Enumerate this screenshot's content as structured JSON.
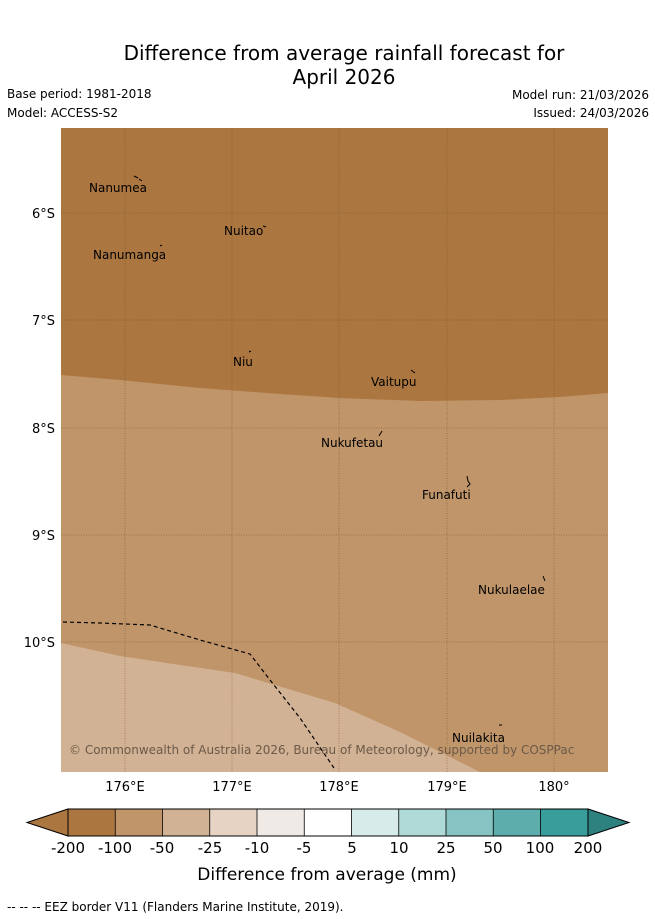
{
  "title": {
    "line1": "Difference from average rainfall forecast for",
    "line2": "April 2026"
  },
  "meta": {
    "base_period": "Base period: 1981-2018",
    "model": "Model: ACCESS-S2",
    "model_run": "Model run: 21/03/2026",
    "issued": "Issued: 24/03/2026"
  },
  "map": {
    "lon_labels": [
      "176°E",
      "177°E",
      "178°E",
      "179°E",
      "180°"
    ],
    "lat_labels": [
      "6°S",
      "7°S",
      "8°S",
      "9°S",
      "10°S"
    ],
    "islands": [
      "Nanumea",
      "Nuitao",
      "Nanumanga",
      "Niu",
      "Vaitupu",
      "Nukufetau",
      "Funafuti",
      "Nukulaelae",
      "Nuilakita"
    ],
    "copyright": "© Commonwealth of Australia 2026, Bureau of Meteorology, supported by COSPPac"
  },
  "legend": {
    "ticks": [
      "-200",
      "-100",
      "-50",
      "-25",
      "-10",
      "-5",
      "5",
      "10",
      "25",
      "50",
      "100",
      "200"
    ],
    "colors": [
      "#ab7640",
      "#ab7640",
      "#c0956a",
      "#d2b294",
      "#e6d3c3",
      "#efeae6",
      "#ffffff",
      "#d7ebea",
      "#b0dad8",
      "#86c3c2",
      "#5cadab",
      "#389d9b",
      "#2d8280"
    ],
    "label": "Difference from average (mm)"
  },
  "footer": "--  --  -- EEZ border V11 (Flanders Marine Institute, 2019)."
}
